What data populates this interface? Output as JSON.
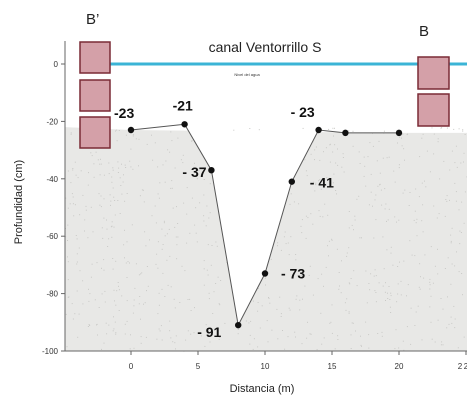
{
  "chart_data": {
    "type": "line",
    "title": "canal Ventorrillo S",
    "water_label": "Nivel del agua",
    "xlabel": "Distancia (m)",
    "ylabel": "Profundidad (cm)",
    "xlim": [
      -4,
      22
    ],
    "ylim": [
      -100,
      8
    ],
    "xticks": [
      "0",
      "5",
      "10",
      "15",
      "20",
      "2"
    ],
    "yticks": [
      "0",
      "-20",
      "-40",
      "-60",
      "-80",
      "-100"
    ],
    "endpoint_labels": {
      "left": "B’",
      "right": "B"
    },
    "series": [
      {
        "x": [
          0,
          4,
          6,
          8,
          10,
          12,
          14,
          16,
          20
        ],
        "y": [
          -23,
          -21,
          -37,
          -91,
          -73,
          -41,
          -23,
          -24,
          -24
        ]
      }
    ],
    "point_labels": [
      "-23",
      "-21",
      "- 37",
      "- 91",
      "- 73",
      "- 41",
      "- 23"
    ],
    "water_level": 0,
    "colors": {
      "water": "#3bb4d6",
      "line": "#555555",
      "points": "#111111",
      "bank_fill": "#d4a0a8",
      "bank_stroke": "#7a2a35",
      "soil": "#e8e8e6"
    }
  }
}
